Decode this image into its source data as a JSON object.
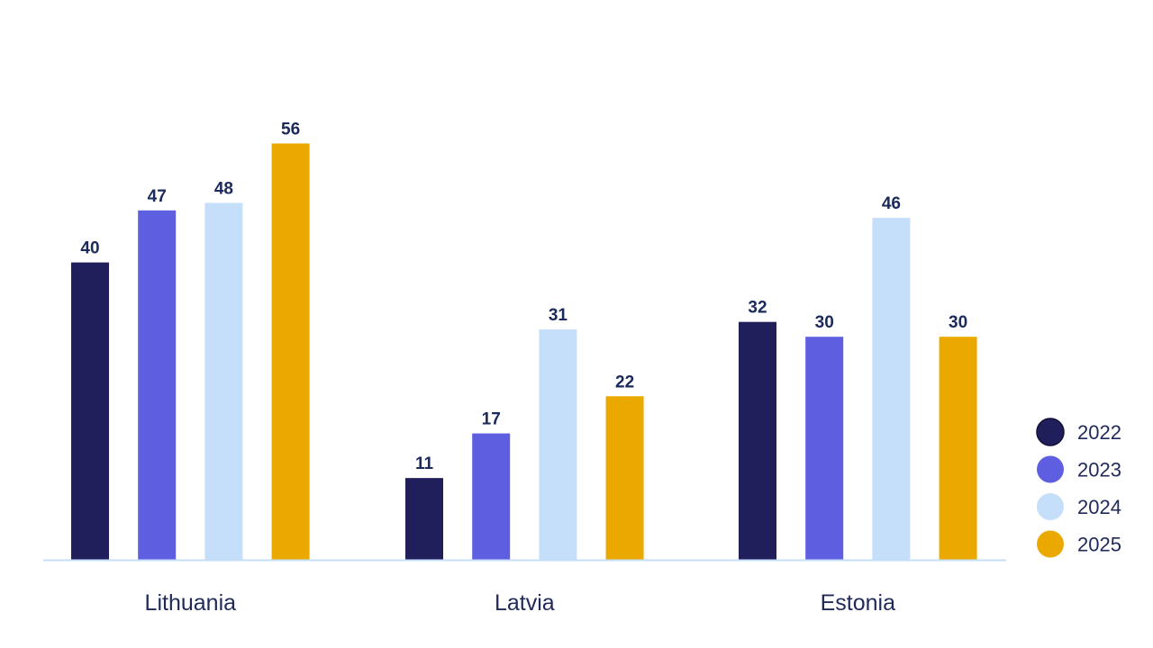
{
  "chart_data": {
    "type": "bar",
    "categories": [
      "Lithuania",
      "Latvia",
      "Estonia"
    ],
    "series": [
      {
        "name": "2022",
        "color": "#201e5b",
        "values": [
          40,
          11,
          32
        ]
      },
      {
        "name": "2023",
        "color": "#5d5fe0",
        "values": [
          47,
          17,
          30
        ]
      },
      {
        "name": "2024",
        "color": "#c5dffb",
        "values": [
          48,
          31,
          46
        ]
      },
      {
        "name": "2025",
        "color": "#eba900",
        "values": [
          56,
          22,
          30
        ]
      }
    ],
    "ylim": [
      0,
      63
    ],
    "grid": false,
    "legend_position": "bottom-right",
    "data_labels": true,
    "axis_color": "#c5dffb"
  }
}
